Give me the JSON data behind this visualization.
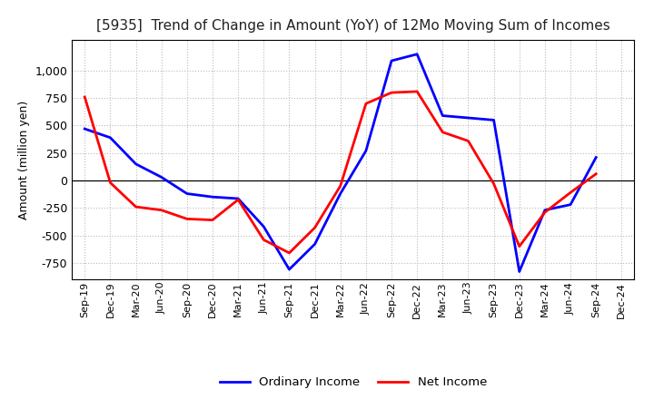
{
  "title": "[5935]  Trend of Change in Amount (YoY) of 12Mo Moving Sum of Incomes",
  "ylabel": "Amount (million yen)",
  "x_labels": [
    "Sep-19",
    "Dec-19",
    "Mar-20",
    "Jun-20",
    "Sep-20",
    "Dec-20",
    "Mar-21",
    "Jun-21",
    "Sep-21",
    "Dec-21",
    "Mar-22",
    "Jun-22",
    "Sep-22",
    "Dec-22",
    "Mar-23",
    "Jun-23",
    "Sep-23",
    "Dec-23",
    "Mar-24",
    "Jun-24",
    "Sep-24",
    "Dec-24"
  ],
  "ordinary_income": [
    470,
    390,
    150,
    30,
    -120,
    -150,
    -165,
    -420,
    -810,
    -580,
    -120,
    270,
    1090,
    1150,
    590,
    570,
    550,
    -830,
    -270,
    -220,
    210,
    null
  ],
  "net_income": [
    760,
    -20,
    -240,
    -270,
    -350,
    -360,
    -175,
    -540,
    -660,
    -430,
    -50,
    700,
    800,
    810,
    440,
    360,
    -30,
    -600,
    -290,
    -110,
    60,
    null
  ],
  "ordinary_income_color": "#0000ff",
  "net_income_color": "#ff0000",
  "ylim": [
    -900,
    1280
  ],
  "yticks": [
    -750,
    -500,
    -250,
    0,
    250,
    500,
    750,
    1000
  ],
  "background_color": "#ffffff",
  "grid_color": "#bbbbbb",
  "legend_labels": [
    "Ordinary Income",
    "Net Income"
  ]
}
